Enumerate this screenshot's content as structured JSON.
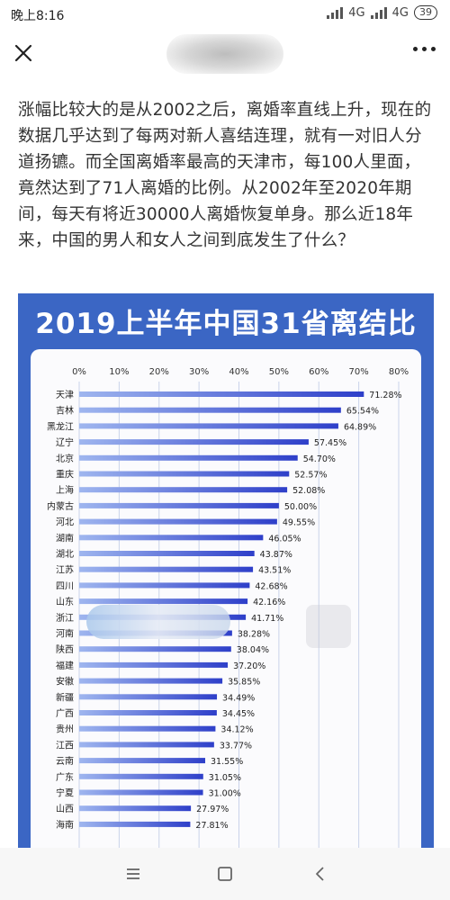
{
  "status_bar": {
    "time": "晚上8:16",
    "network_1": "4G",
    "network_2": "4G",
    "battery": "39"
  },
  "article": {
    "paragraph": "涨幅比较大的是从2002之后，离婚率直线上升，现在的数据几乎达到了每两对新人喜结连理，就有一对旧人分道扬镳。而全国离婚率最高的天津市，每100人里面，竟然达到了71人离婚的比例。从2002年至2020年期间，每天有将近30000人离婚恢复单身。那么近18年来，中国的男人和女人之间到底发生了什么？"
  },
  "chart_data": {
    "type": "bar",
    "title": "2019上半年中国31省离结比",
    "x_ticks": [
      "0%",
      "10%",
      "20%",
      "30%",
      "40%",
      "50%",
      "60%",
      "70%",
      "80%"
    ],
    "xlim": [
      0,
      80
    ],
    "grid": true,
    "categories": [
      "天津",
      "吉林",
      "黑龙江",
      "辽宁",
      "北京",
      "重庆",
      "上海",
      "内蒙古",
      "河北",
      "湖南",
      "湖北",
      "江苏",
      "四川",
      "山东",
      "浙江",
      "河南",
      "陕西",
      "福建",
      "安徽",
      "新疆",
      "广西",
      "贵州",
      "江西",
      "云南",
      "广东",
      "宁夏",
      "山西",
      "海南"
    ],
    "values": [
      71.28,
      65.54,
      64.89,
      57.45,
      54.7,
      52.57,
      52.08,
      50.0,
      49.55,
      46.05,
      43.87,
      43.51,
      42.68,
      42.16,
      41.71,
      38.28,
      38.04,
      37.2,
      35.85,
      34.49,
      34.45,
      34.12,
      33.77,
      31.55,
      31.05,
      31.0,
      27.97,
      27.81
    ],
    "labels": [
      "71.28%",
      "65.54%",
      "64.89%",
      "57.45%",
      "54.70%",
      "52.57%",
      "52.08%",
      "50.00%",
      "49.55%",
      "46.05%",
      "43.87%",
      "43.51%",
      "42.68%",
      "42.16%",
      "41.71%",
      "38.28%",
      "38.04%",
      "37.20%",
      "35.85%",
      "34.49%",
      "34.45%",
      "34.12%",
      "33.77%",
      "31.55%",
      "31.05%",
      "31.00%",
      "27.97%",
      "27.81%"
    ],
    "colors": {
      "bar_start": "#9fb6ef",
      "bar_end": "#2e3fc9",
      "background": "#3b66c4",
      "panel": "#fbfbfd"
    }
  },
  "icons": {
    "close": "close-icon",
    "more": "more-icon",
    "menu": "menu-icon",
    "home": "home-icon",
    "back": "back-icon"
  }
}
